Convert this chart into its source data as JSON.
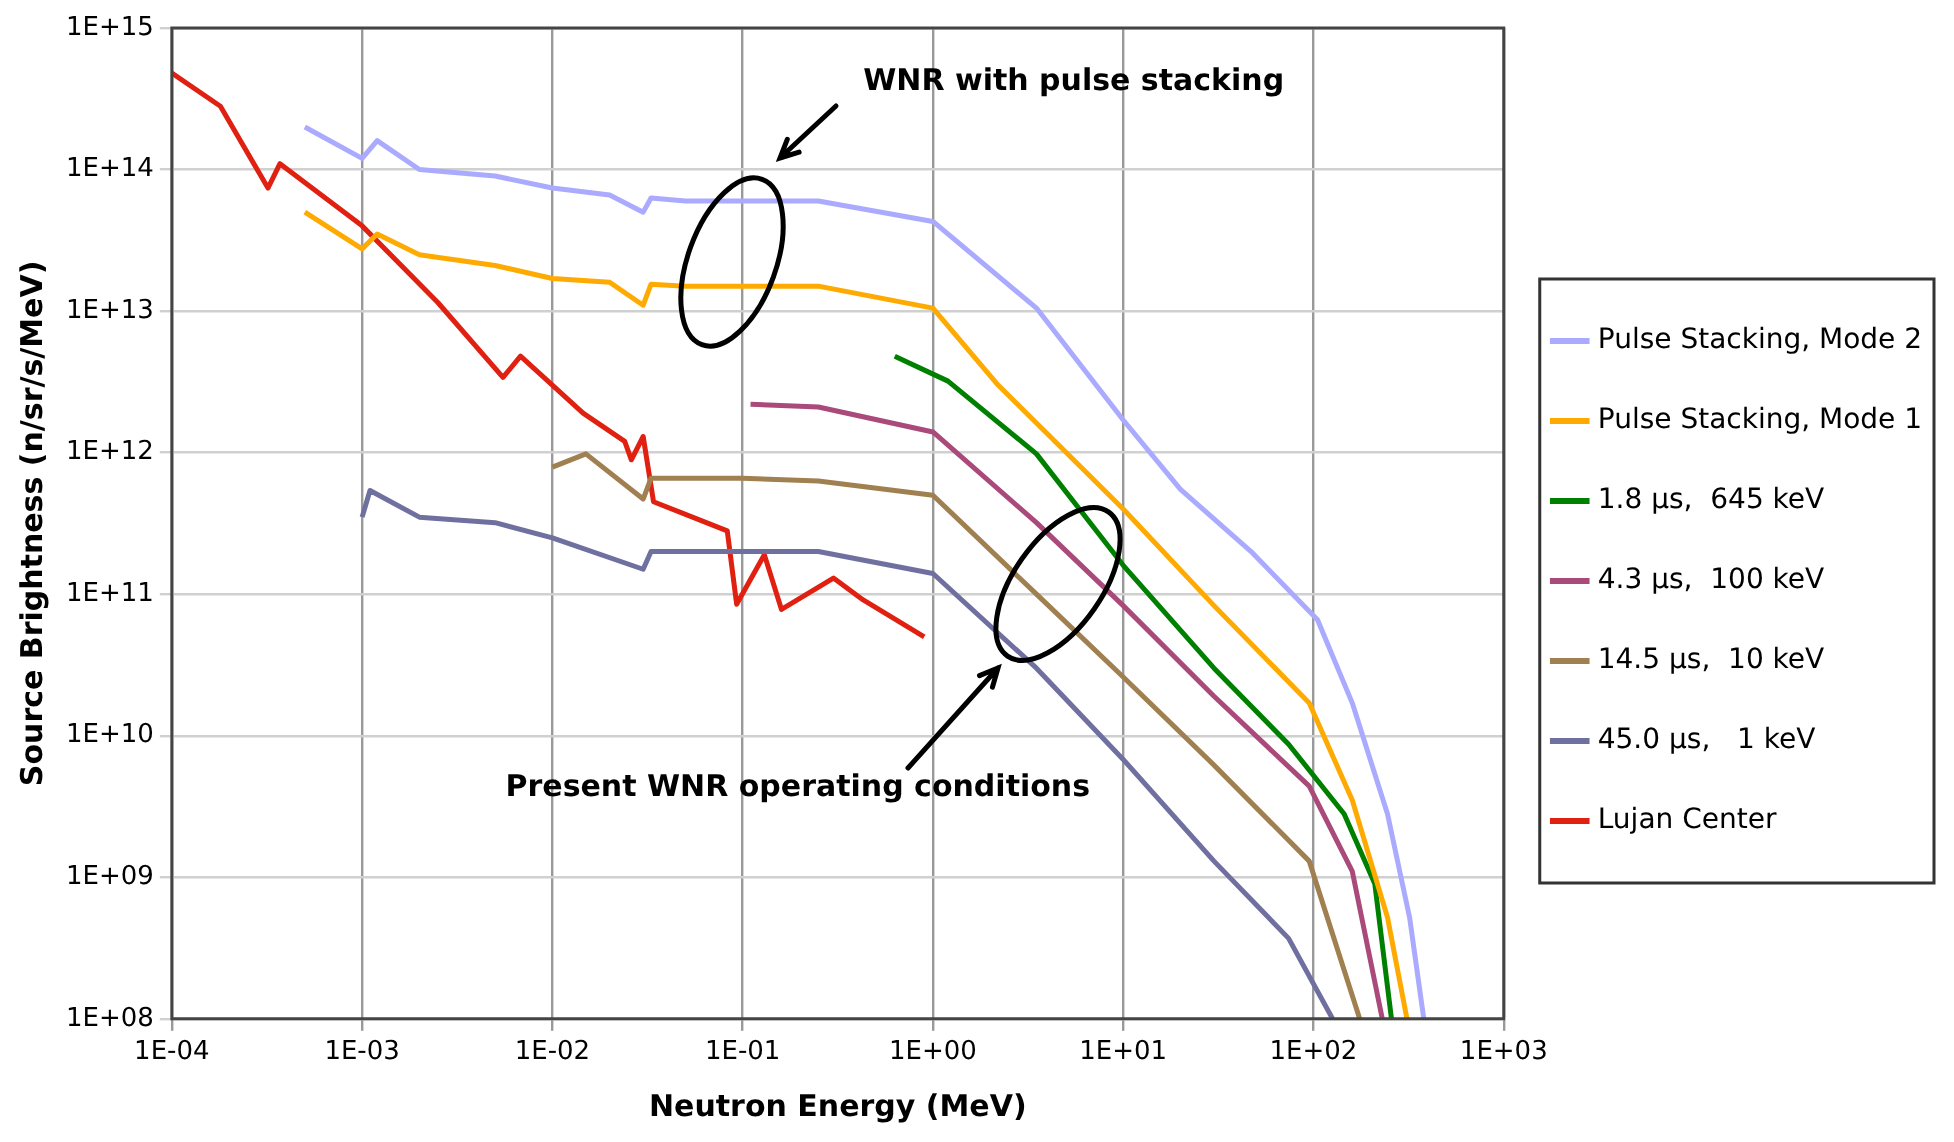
{
  "chart_data": {
    "type": "line",
    "xlabel": "Neutron Energy (MeV)",
    "ylabel": "Source Brightness (n/sr/s/MeV)",
    "log": "xy",
    "grid": true,
    "legend": "right",
    "line_style": "solid",
    "xlim": [
      0.0001,
      1000
    ],
    "xticks": [
      {
        "value": 0.0001,
        "label": "1E-04"
      },
      {
        "value": 0.001,
        "label": "1E-03"
      },
      {
        "value": 0.01,
        "label": "1E-02"
      },
      {
        "value": 0.1,
        "label": "1E-01"
      },
      {
        "value": 1,
        "label": "1E+00"
      },
      {
        "value": 10,
        "label": "1E+01"
      },
      {
        "value": 100,
        "label": "1E+02"
      },
      {
        "value": 1000,
        "label": "1E+03"
      }
    ],
    "ylim": [
      100000000,
      1000000000000000
    ],
    "yticks": [
      {
        "value": 100000000,
        "label": "1E+08"
      },
      {
        "value": 1000000000,
        "label": "1E+09"
      },
      {
        "value": 10000000000,
        "label": "1E+10"
      },
      {
        "value": 100000000000,
        "label": "1E+11"
      },
      {
        "value": 1000000000000,
        "label": "1E+12"
      },
      {
        "value": 10000000000000,
        "label": "1E+13"
      },
      {
        "value": 100000000000000,
        "label": "1E+14"
      },
      {
        "value": 1000000000000000,
        "label": "1E+15"
      }
    ],
    "series": [
      {
        "name": "Pulse Stacking, Mode 2",
        "color": "#aaaaff",
        "x": [
          0.0005,
          0.001,
          0.0012,
          0.002,
          0.005,
          0.01,
          0.02,
          0.03,
          0.033,
          0.05,
          0.1,
          0.25,
          1,
          3.5,
          10,
          20,
          47,
          105,
          160,
          245,
          320,
          380
        ],
        "values": [
          200000000000000.0,
          120000000000000.0,
          160000000000000.0,
          100000000000000.0,
          90000000000000.0,
          74000000000000.0,
          66000000000000.0,
          50000000000000.0,
          63000000000000.0,
          60000000000000.0,
          60000000000000.0,
          60000000000000.0,
          43000000000000.0,
          10500000000000.0,
          1700000000000.0,
          550000000000.0,
          200000000000.0,
          66000000000.0,
          17000000000.0,
          2800000000.0,
          520000000.0,
          100000000.0
        ]
      },
      {
        "name": "Pulse Stacking, Mode 1",
        "color": "#ffaa00",
        "x": [
          0.0005,
          0.001,
          0.0012,
          0.002,
          0.005,
          0.01,
          0.02,
          0.03,
          0.033,
          0.05,
          0.1,
          0.25,
          1,
          2.2,
          10,
          30,
          95,
          160,
          245,
          310
        ],
        "values": [
          50000000000000.0,
          27500000000000.0,
          35000000000000.0,
          25000000000000.0,
          21000000000000.0,
          17000000000000.0,
          16000000000000.0,
          11000000000000.0,
          15500000000000.0,
          15000000000000.0,
          15000000000000.0,
          15000000000000.0,
          10500000000000.0,
          3000000000000.0,
          400000000000.0,
          83000000000.0,
          17000000000.0,
          3500000000.0,
          520000000.0,
          100000000.0
        ]
      },
      {
        "name": "1.8 µs,  645 keV",
        "color": "#008000",
        "x": [
          0.63,
          1.2,
          3.5,
          10,
          30,
          74,
          145,
          210,
          257
        ],
        "values": [
          4800000000000.0,
          3200000000000.0,
          980000000000.0,
          160000000000.0,
          30000000000.0,
          8700000000.0,
          2800000000.0,
          900000000.0,
          100000000.0
        ]
      },
      {
        "name": "4.3 µs,  100 keV",
        "color": "#aa4a7a",
        "x": [
          0.11,
          0.25,
          1,
          3.5,
          10,
          30,
          95,
          160,
          230
        ],
        "values": [
          2200000000000.0,
          2100000000000.0,
          1400000000000.0,
          320000000000.0,
          83000000000.0,
          19000000000.0,
          4400000000.0,
          1100000000.0,
          100000000.0
        ]
      },
      {
        "name": "14.5 µs,  10 keV",
        "color": "#a08050",
        "x": [
          0.01,
          0.015,
          0.03,
          0.033,
          0.1,
          0.25,
          1,
          3.5,
          10,
          30,
          95,
          175
        ],
        "values": [
          790000000000.0,
          980000000000.0,
          470000000000.0,
          660000000000.0,
          660000000000.0,
          630000000000.0,
          500000000000.0,
          100000000000.0,
          26000000000.0,
          6200000000.0,
          1300000000.0,
          100000000.0
        ]
      },
      {
        "name": "45.0 µs,   1 keV",
        "color": "#7070a0",
        "x": [
          0.001,
          0.0011,
          0.002,
          0.005,
          0.01,
          0.03,
          0.033,
          0.1,
          0.25,
          1,
          3.5,
          10,
          30,
          74,
          126
        ],
        "values": [
          350000000000.0,
          540000000000.0,
          350000000000.0,
          320000000000.0,
          250000000000.0,
          150000000000.0,
          200000000000.0,
          200000000000.0,
          200000000000.0,
          140000000000.0,
          30000000000.0,
          6800000000.0,
          1300000000.0,
          370000000.0,
          100000000.0
        ]
      },
      {
        "name": "Lujan Center",
        "color": "#e02010",
        "x": [
          0.0001,
          0.00018,
          0.00032,
          0.00037,
          0.001,
          0.0025,
          0.0055,
          0.0068,
          0.0145,
          0.024,
          0.026,
          0.03,
          0.034,
          0.083,
          0.093,
          0.13,
          0.16,
          0.3,
          0.43,
          0.9
        ],
        "values": [
          480000000000000.0,
          280000000000000.0,
          74000000000000.0,
          110000000000000.0,
          40000000000000.0,
          11500000000000.0,
          3400000000000.0,
          4800000000000.0,
          1900000000000.0,
          1200000000000.0,
          890000000000.0,
          1300000000000.0,
          450000000000.0,
          280000000000.0,
          85000000000.0,
          190000000000.0,
          78000000000.0,
          130000000000.0,
          91000000000.0,
          50000000000.0
        ]
      }
    ],
    "annotations": [
      "WNR with pulse stacking",
      "Present WNR operating conditions"
    ]
  }
}
